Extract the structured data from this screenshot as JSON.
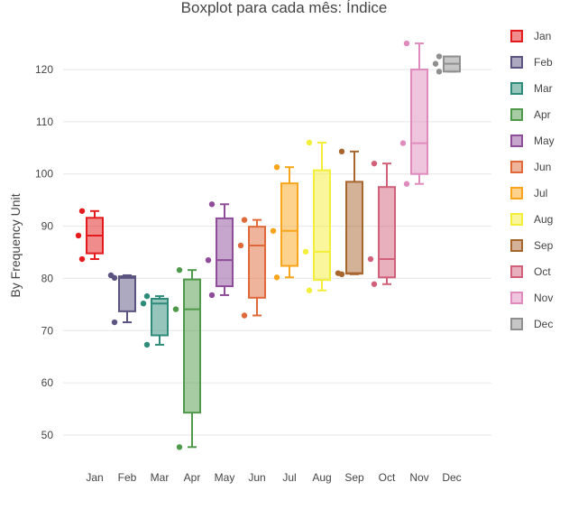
{
  "chart_data": {
    "type": "boxplot",
    "title": "Boxplot para cada mês: Índice",
    "ylabel": "By Frequency Unit",
    "xlabel": "",
    "ylim": [
      44,
      130
    ],
    "yticks": [
      50,
      60,
      70,
      80,
      90,
      100,
      110,
      120
    ],
    "grid": true,
    "legend_position": "right",
    "categories": [
      "Jan",
      "Feb",
      "Mar",
      "Apr",
      "May",
      "Jun",
      "Jul",
      "Aug",
      "Sep",
      "Oct",
      "Nov",
      "Dec"
    ],
    "series": [
      {
        "name": "Jan",
        "color": "#e41a1c",
        "q1": 84.8,
        "median": 88.2,
        "q3": 91.6,
        "whisker_low": 83.7,
        "whisker_high": 92.9,
        "points": [
          92.9,
          88.2,
          83.7
        ]
      },
      {
        "name": "Feb",
        "color": "#5b5481",
        "q1": 73.7,
        "median": 80.1,
        "q3": 80.4,
        "whisker_low": 71.6,
        "whisker_high": 80.6,
        "points": [
          80.1,
          80.6,
          71.6
        ]
      },
      {
        "name": "Mar",
        "color": "#2e8b7a",
        "q1": 69.1,
        "median": 75.2,
        "q3": 76.1,
        "whisker_low": 67.3,
        "whisker_high": 76.6,
        "points": [
          76.6,
          75.2,
          67.3
        ]
      },
      {
        "name": "Apr",
        "color": "#4f9a4a",
        "q1": 54.3,
        "median": 74.1,
        "q3": 79.8,
        "whisker_low": 47.7,
        "whisker_high": 81.6,
        "points": [
          81.6,
          74.1,
          47.7
        ]
      },
      {
        "name": "May",
        "color": "#8e4d99",
        "q1": 78.5,
        "median": 83.5,
        "q3": 91.5,
        "whisker_low": 76.8,
        "whisker_high": 94.2,
        "points": [
          94.2,
          83.5,
          76.8
        ]
      },
      {
        "name": "Jun",
        "color": "#e0693a",
        "q1": 76.3,
        "median": 86.3,
        "q3": 89.9,
        "whisker_low": 72.9,
        "whisker_high": 91.2,
        "points": [
          91.2,
          86.3,
          72.9
        ]
      },
      {
        "name": "Jul",
        "color": "#f9a51b",
        "q1": 82.4,
        "median": 89.1,
        "q3": 98.2,
        "whisker_low": 80.2,
        "whisker_high": 101.3,
        "points": [
          101.3,
          89.1,
          80.2
        ]
      },
      {
        "name": "Aug",
        "color": "#f3ee3a",
        "q1": 79.7,
        "median": 85.1,
        "q3": 100.7,
        "whisker_low": 77.7,
        "whisker_high": 106.0,
        "points": [
          106.0,
          85.1,
          77.7
        ]
      },
      {
        "name": "Sep",
        "color": "#a8662f",
        "q1": 80.9,
        "median": 81.0,
        "q3": 98.5,
        "whisker_low": 80.8,
        "whisker_high": 104.3,
        "points": [
          104.3,
          81.0,
          80.8
        ]
      },
      {
        "name": "Oct",
        "color": "#d1617a",
        "q1": 80.2,
        "median": 83.7,
        "q3": 97.5,
        "whisker_low": 78.9,
        "whisker_high": 102.0,
        "points": [
          102.0,
          83.7,
          78.9
        ]
      },
      {
        "name": "Nov",
        "color": "#e08bbd",
        "q1": 100.0,
        "median": 105.9,
        "q3": 120.0,
        "whisker_low": 98.1,
        "whisker_high": 125.0,
        "points": [
          125.0,
          105.9,
          98.1
        ]
      },
      {
        "name": "Dec",
        "color": "#8f8f8f",
        "q1": 119.6,
        "median": 121.1,
        "q3": 122.5,
        "whisker_low": 119.6,
        "whisker_high": 122.5,
        "points": [
          122.5,
          121.1,
          119.6
        ]
      }
    ]
  }
}
